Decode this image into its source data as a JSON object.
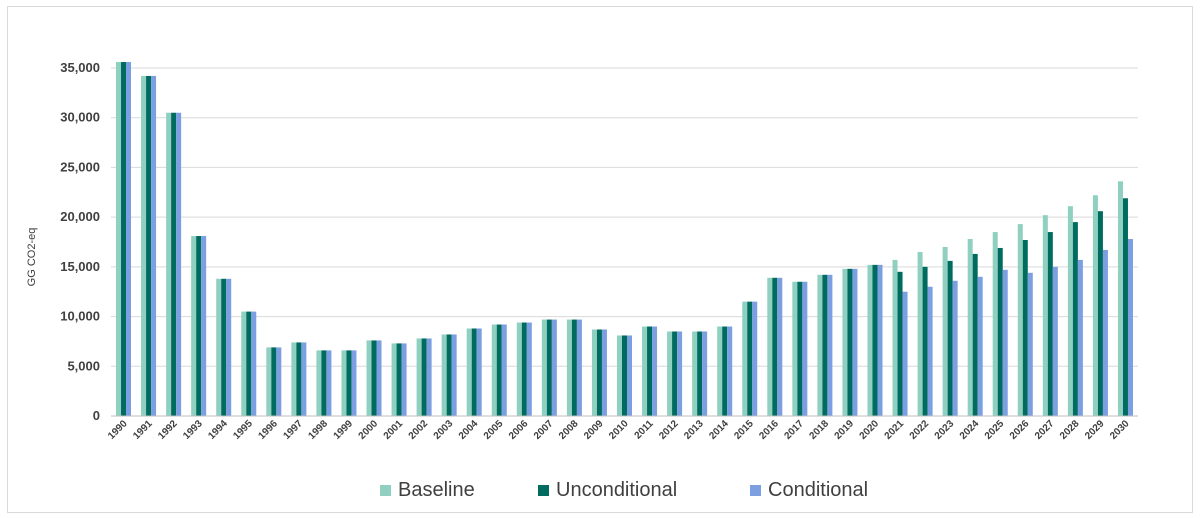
{
  "chart_data": {
    "type": "bar",
    "title": "",
    "xlabel": "",
    "ylabel": "GG CO2-eq",
    "ylim": [
      0,
      35000
    ],
    "yticks": [
      "0",
      "5,000",
      "10,000",
      "15,000",
      "20,000",
      "25,000",
      "30,000",
      "35,000"
    ],
    "ytick_values": [
      0,
      5000,
      10000,
      15000,
      20000,
      25000,
      30000,
      35000
    ],
    "grid": true,
    "legend_position": "bottom",
    "categories": [
      "1990",
      "1991",
      "1992",
      "1993",
      "1994",
      "1995",
      "1996",
      "1997",
      "1998",
      "1999",
      "2000",
      "2001",
      "2002",
      "2003",
      "2004",
      "2005",
      "2006",
      "2007",
      "2008",
      "2009",
      "2010",
      "2011",
      "2012",
      "2013",
      "2014",
      "2015",
      "2016",
      "2017",
      "2018",
      "2019",
      "2020",
      "2021",
      "2022",
      "2023",
      "2024",
      "2025",
      "2026",
      "2027",
      "2028",
      "2029",
      "2030"
    ],
    "series": [
      {
        "name": "Baseline",
        "color": "#8fd0c0",
        "values": [
          35600,
          34200,
          30500,
          18100,
          13800,
          10500,
          6900,
          7400,
          6600,
          6600,
          7600,
          7300,
          7800,
          8200,
          8800,
          9200,
          9400,
          9700,
          9700,
          8700,
          8100,
          9000,
          8500,
          8500,
          9000,
          11500,
          13900,
          13500,
          14200,
          14800,
          15200,
          15700,
          16500,
          17000,
          17800,
          18500,
          19300,
          20200,
          21100,
          22200,
          23600
        ]
      },
      {
        "name": "Unconditional",
        "color": "#006b5f",
        "values": [
          35600,
          34200,
          30500,
          18100,
          13800,
          10500,
          6900,
          7400,
          6600,
          6600,
          7600,
          7300,
          7800,
          8200,
          8800,
          9200,
          9400,
          9700,
          9700,
          8700,
          8100,
          9000,
          8500,
          8500,
          9000,
          11500,
          13900,
          13500,
          14200,
          14800,
          15200,
          14500,
          15000,
          15600,
          16300,
          16900,
          17700,
          18500,
          19500,
          20600,
          21900
        ]
      },
      {
        "name": "Conditional",
        "color": "#7b9fe0",
        "values": [
          35600,
          34200,
          30500,
          18100,
          13800,
          10500,
          6900,
          7400,
          6600,
          6600,
          7600,
          7300,
          7800,
          8200,
          8800,
          9200,
          9400,
          9700,
          9700,
          8700,
          8100,
          9000,
          8500,
          8500,
          9000,
          11500,
          13900,
          13500,
          14200,
          14800,
          15200,
          12500,
          13000,
          13600,
          14000,
          14700,
          14400,
          15000,
          15700,
          16700,
          17800
        ]
      }
    ]
  }
}
